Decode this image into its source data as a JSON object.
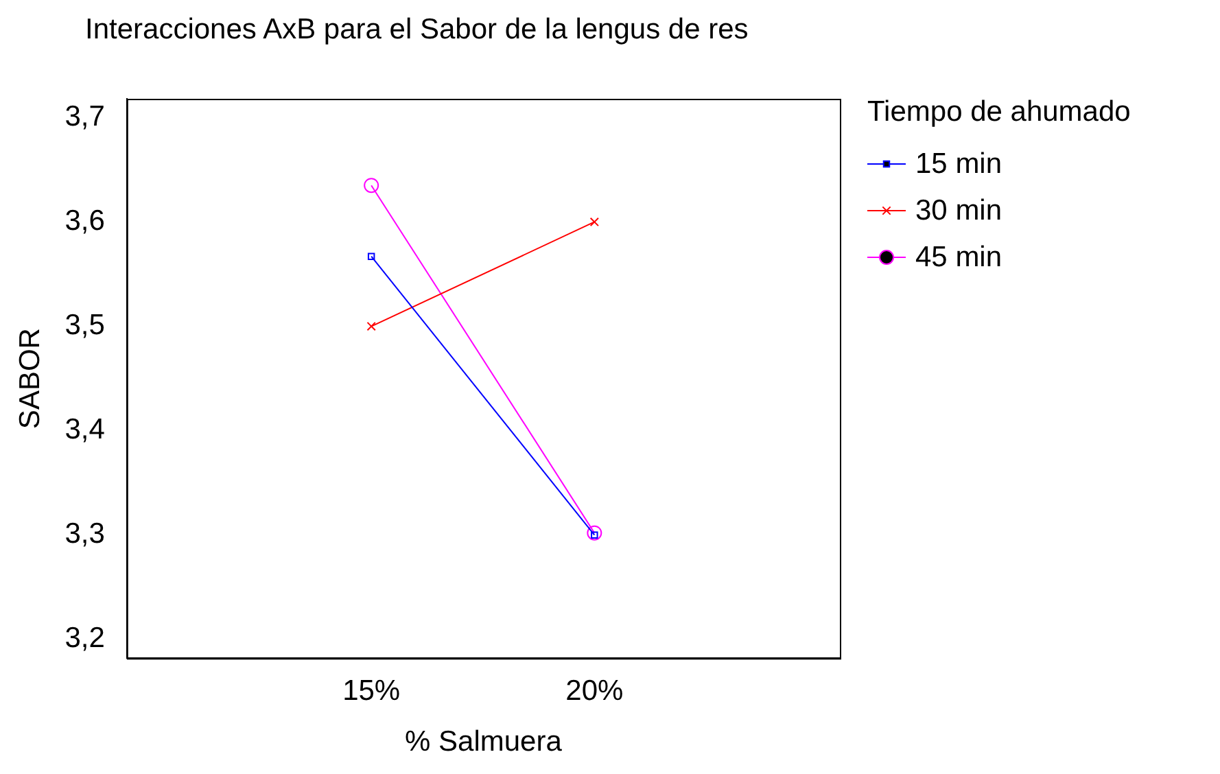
{
  "chart_data": {
    "type": "line",
    "title": "Interacciones AxB para el Sabor de la lengus de res",
    "xlabel": "% Salmuera",
    "ylabel": "SABOR",
    "legend_title": "Tiempo de ahumado",
    "legend": "right",
    "grid": false,
    "categories": [
      "15%",
      "20%"
    ],
    "ylim": [
      3.182,
      3.718
    ],
    "yticks": [
      {
        "value": 3.2,
        "label": "3,2"
      },
      {
        "value": 3.3,
        "label": "3,3"
      },
      {
        "value": 3.4,
        "label": "3,4"
      },
      {
        "value": 3.5,
        "label": "3,5"
      },
      {
        "value": 3.6,
        "label": "3,6"
      },
      {
        "value": 3.7,
        "label": "3,7"
      }
    ],
    "series": [
      {
        "name": "15 min",
        "color": "#0000ff",
        "marker": "square",
        "values": [
          3.567,
          3.3
        ]
      },
      {
        "name": "30 min",
        "color": "#ff0000",
        "marker": "cross",
        "values": [
          3.5,
          3.6
        ]
      },
      {
        "name": "45 min",
        "color": "#ff00ff",
        "marker": "circle",
        "values": [
          3.635,
          3.302
        ]
      }
    ]
  }
}
